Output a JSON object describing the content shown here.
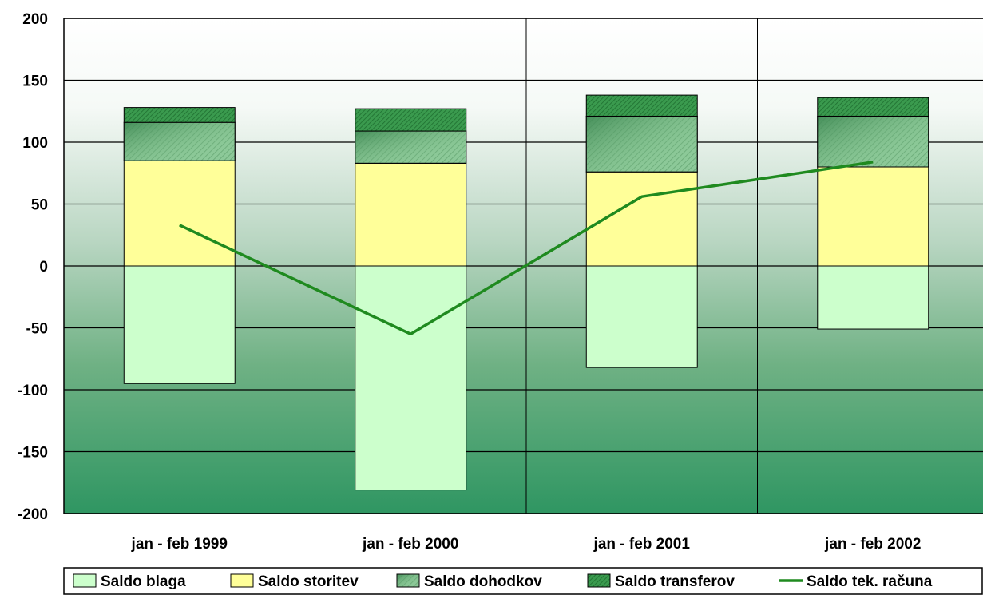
{
  "chart_data": {
    "type": "bar",
    "stacked": true,
    "categories": [
      "jan - feb 1999",
      "jan - feb 2000",
      "jan - feb 2001",
      "jan - feb 2002"
    ],
    "series": [
      {
        "name": "Saldo blaga",
        "kind": "bar",
        "color": "#ccffcc",
        "values": [
          -95,
          -181,
          -82,
          -51
        ]
      },
      {
        "name": "Saldo storitev",
        "kind": "bar",
        "color": "#ffff99",
        "values": [
          85,
          83,
          76,
          80
        ]
      },
      {
        "name": "Saldo dohodkov",
        "kind": "bar",
        "color": "#5aa86a",
        "values": [
          31,
          26,
          45,
          41
        ]
      },
      {
        "name": "Saldo transferov",
        "kind": "bar",
        "color": "#2e8b45",
        "values": [
          12,
          18,
          17,
          15
        ]
      },
      {
        "name": "Saldo tek. računa",
        "kind": "line",
        "color": "#1f8a1f",
        "values": [
          33,
          -55,
          56,
          84
        ]
      }
    ],
    "ylim": [
      -200,
      200
    ],
    "yticks": [
      "200",
      "150",
      "100",
      "50",
      "0",
      "-50",
      "-100",
      "-150",
      "-200"
    ],
    "grid": true,
    "legend_position": "bottom",
    "title": "",
    "xlabel": "",
    "ylabel": ""
  }
}
